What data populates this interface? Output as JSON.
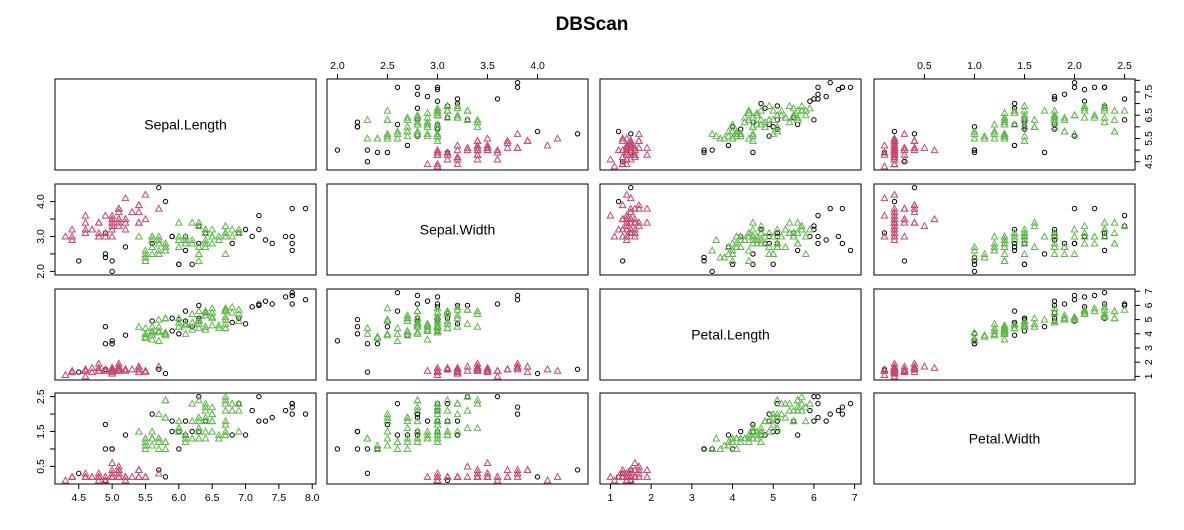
{
  "title": "DBScan",
  "chart_data": {
    "type": "scatter",
    "title": "DBScan",
    "variables": [
      "Sepal.Length",
      "Sepal.Width",
      "Petal.Length",
      "Petal.Width"
    ],
    "ranges": [
      [
        4.3,
        7.9
      ],
      [
        2.0,
        4.4
      ],
      [
        1.0,
        6.9
      ],
      [
        0.1,
        2.5
      ]
    ],
    "ticks": [
      [
        4.5,
        5.0,
        5.5,
        6.0,
        6.5,
        7.0,
        7.5,
        8.0
      ],
      [
        2.0,
        2.5,
        3.0,
        3.5,
        4.0
      ],
      [
        1,
        2,
        3,
        4,
        5,
        6,
        7
      ],
      [
        0.5,
        1.0,
        1.5,
        2.0,
        2.5
      ]
    ],
    "tick_labels": [
      [
        "4.5",
        "5.0",
        "5.5",
        "6.0",
        "6.5",
        "7.0",
        "7.5",
        "8.0"
      ],
      [
        "2.0",
        "2.5",
        "3.0",
        "3.5",
        "4.0"
      ],
      [
        "1",
        "2",
        "3",
        "4",
        "5",
        "6",
        "7"
      ],
      [
        "0.5",
        "1.0",
        "1.5",
        "2.0",
        "2.5"
      ]
    ],
    "left_ticks": {
      "1": {
        "values": [
          2.0,
          2.5,
          3.0,
          3.5,
          4.0
        ],
        "labels": [
          "2.0",
          "",
          "3.0",
          "",
          "4.0"
        ]
      },
      "3": {
        "values": [
          0.5,
          1.0,
          1.5,
          2.0,
          2.5
        ],
        "labels": [
          "0.5",
          "",
          "1.5",
          "",
          "2.5"
        ]
      }
    },
    "right_ticks": {
      "0": {
        "values": [
          4.5,
          5.0,
          5.5,
          6.0,
          6.5,
          7.0,
          7.5,
          8.0
        ],
        "labels": [
          "4.5",
          "",
          "5.5",
          "",
          "6.5",
          "",
          "7.5",
          ""
        ]
      },
      "2": {
        "values": [
          1,
          2,
          3,
          4,
          5,
          6,
          7
        ],
        "labels": [
          "1",
          "2",
          "3",
          "4",
          "5",
          "6",
          "7"
        ]
      }
    },
    "clusters": [
      {
        "cluster": 0,
        "color": "#000000",
        "marker": "circle",
        "points": [
          [
            5.8,
            4.0,
            1.2,
            0.2
          ],
          [
            5.7,
            4.4,
            1.5,
            0.4
          ],
          [
            4.5,
            2.3,
            1.3,
            0.3
          ],
          [
            5.0,
            2.3,
            3.3,
            1.0
          ],
          [
            4.9,
            2.4,
            3.3,
            1.0
          ],
          [
            5.2,
            2.7,
            3.9,
            1.4
          ],
          [
            5.0,
            2.0,
            3.5,
            1.0
          ],
          [
            5.9,
            3.0,
            4.2,
            1.5
          ],
          [
            6.0,
            2.2,
            4.0,
            1.0
          ],
          [
            6.2,
            2.2,
            4.5,
            1.5
          ],
          [
            6.3,
            3.3,
            6.0,
            2.5
          ],
          [
            7.1,
            3.0,
            5.9,
            2.1
          ],
          [
            7.6,
            3.0,
            6.6,
            2.1
          ],
          [
            4.9,
            2.5,
            4.5,
            1.7
          ],
          [
            7.3,
            2.9,
            6.3,
            1.8
          ],
          [
            7.2,
            3.6,
            6.1,
            2.5
          ],
          [
            7.7,
            3.8,
            6.7,
            2.2
          ],
          [
            7.7,
            2.6,
            6.9,
            2.3
          ],
          [
            6.0,
            2.2,
            5.0,
            1.5
          ],
          [
            7.7,
            2.8,
            6.7,
            2.0
          ],
          [
            7.2,
            3.2,
            6.0,
            1.8
          ],
          [
            7.9,
            3.8,
            6.4,
            2.0
          ],
          [
            6.3,
            2.8,
            5.1,
            1.5
          ],
          [
            6.1,
            2.6,
            5.6,
            1.4
          ],
          [
            7.7,
            3.0,
            6.1,
            2.3
          ],
          [
            6.4,
            3.1,
            5.5,
            1.8
          ],
          [
            6.9,
            3.1,
            5.1,
            2.3
          ],
          [
            5.9,
            3.0,
            5.1,
            1.8
          ],
          [
            6.8,
            2.8,
            4.8,
            1.4
          ],
          [
            5.6,
            2.8,
            4.9,
            2.0
          ],
          [
            7.4,
            2.8,
            6.1,
            1.9
          ],
          [
            6.1,
            3.0,
            4.9,
            1.8
          ],
          [
            4.9,
            3.1,
            1.5,
            0.1
          ],
          [
            7.0,
            3.2,
            4.7,
            1.4
          ]
        ]
      },
      {
        "cluster": 1,
        "color": "#c7476f",
        "marker": "triangle",
        "points": [
          [
            5.1,
            3.5,
            1.4,
            0.2
          ],
          [
            4.9,
            3.0,
            1.4,
            0.2
          ],
          [
            4.7,
            3.2,
            1.3,
            0.2
          ],
          [
            4.6,
            3.1,
            1.5,
            0.2
          ],
          [
            5.0,
            3.6,
            1.4,
            0.2
          ],
          [
            5.4,
            3.9,
            1.7,
            0.4
          ],
          [
            4.6,
            3.4,
            1.4,
            0.3
          ],
          [
            5.0,
            3.4,
            1.5,
            0.2
          ],
          [
            4.4,
            2.9,
            1.4,
            0.2
          ],
          [
            5.4,
            3.7,
            1.5,
            0.2
          ],
          [
            4.8,
            3.4,
            1.6,
            0.2
          ],
          [
            4.8,
            3.0,
            1.4,
            0.1
          ],
          [
            4.3,
            3.0,
            1.1,
            0.1
          ],
          [
            5.4,
            3.9,
            1.3,
            0.4
          ],
          [
            5.1,
            3.5,
            1.4,
            0.3
          ],
          [
            5.1,
            3.8,
            1.5,
            0.3
          ],
          [
            5.4,
            3.4,
            1.7,
            0.2
          ],
          [
            5.1,
            3.7,
            1.5,
            0.4
          ],
          [
            4.6,
            3.6,
            1.0,
            0.2
          ],
          [
            5.1,
            3.3,
            1.7,
            0.5
          ],
          [
            4.8,
            3.4,
            1.9,
            0.2
          ],
          [
            5.0,
            3.0,
            1.6,
            0.2
          ],
          [
            5.0,
            3.4,
            1.6,
            0.4
          ],
          [
            5.2,
            3.5,
            1.5,
            0.2
          ],
          [
            5.2,
            3.4,
            1.4,
            0.2
          ],
          [
            4.7,
            3.2,
            1.6,
            0.2
          ],
          [
            4.8,
            3.1,
            1.6,
            0.2
          ],
          [
            5.4,
            3.4,
            1.5,
            0.4
          ],
          [
            5.2,
            4.1,
            1.5,
            0.1
          ],
          [
            5.5,
            4.2,
            1.4,
            0.2
          ],
          [
            5.0,
            3.2,
            1.2,
            0.2
          ],
          [
            5.5,
            3.5,
            1.3,
            0.2
          ],
          [
            4.4,
            3.0,
            1.3,
            0.2
          ],
          [
            5.1,
            3.4,
            1.5,
            0.2
          ],
          [
            5.0,
            3.5,
            1.3,
            0.3
          ],
          [
            4.4,
            3.2,
            1.3,
            0.2
          ],
          [
            5.0,
            3.5,
            1.6,
            0.6
          ],
          [
            5.1,
            3.8,
            1.9,
            0.4
          ],
          [
            4.8,
            3.0,
            1.4,
            0.3
          ],
          [
            5.1,
            3.8,
            1.6,
            0.2
          ],
          [
            4.6,
            3.2,
            1.4,
            0.2
          ],
          [
            5.3,
            3.7,
            1.5,
            0.2
          ],
          [
            5.0,
            3.3,
            1.4,
            0.2
          ],
          [
            4.9,
            3.6,
            1.4,
            0.1
          ],
          [
            5.2,
            3.2,
            1.5,
            0.2
          ],
          [
            4.9,
            3.1,
            1.5,
            0.2
          ],
          [
            5.7,
            3.8,
            1.7,
            0.3
          ]
        ]
      },
      {
        "cluster": 2,
        "color": "#5fb84a",
        "marker": "triangle",
        "points": [
          [
            6.4,
            3.2,
            4.5,
            1.5
          ],
          [
            6.9,
            3.1,
            4.9,
            1.5
          ],
          [
            5.5,
            2.3,
            4.0,
            1.3
          ],
          [
            6.5,
            2.8,
            4.6,
            1.5
          ],
          [
            5.7,
            2.8,
            4.5,
            1.3
          ],
          [
            6.3,
            3.3,
            4.7,
            1.6
          ],
          [
            6.6,
            2.9,
            4.6,
            1.3
          ],
          [
            5.6,
            2.9,
            3.6,
            1.3
          ],
          [
            6.7,
            3.1,
            4.4,
            1.4
          ],
          [
            5.6,
            3.0,
            4.5,
            1.5
          ],
          [
            5.8,
            2.7,
            4.1,
            1.0
          ],
          [
            5.6,
            2.5,
            3.9,
            1.1
          ],
          [
            6.1,
            2.8,
            4.0,
            1.3
          ],
          [
            6.3,
            2.5,
            4.9,
            1.5
          ],
          [
            6.1,
            2.8,
            4.7,
            1.2
          ],
          [
            6.4,
            2.9,
            4.3,
            1.3
          ],
          [
            6.6,
            3.0,
            4.4,
            1.4
          ],
          [
            6.7,
            3.0,
            5.0,
            1.7
          ],
          [
            5.7,
            2.6,
            3.5,
            1.0
          ],
          [
            5.5,
            2.4,
            3.8,
            1.1
          ],
          [
            5.5,
            2.4,
            3.7,
            1.0
          ],
          [
            5.8,
            2.7,
            3.9,
            1.2
          ],
          [
            6.0,
            2.7,
            5.1,
            1.6
          ],
          [
            5.4,
            3.0,
            4.5,
            1.5
          ],
          [
            6.0,
            3.4,
            4.5,
            1.6
          ],
          [
            6.7,
            3.1,
            4.7,
            1.5
          ],
          [
            6.3,
            2.3,
            4.4,
            1.3
          ],
          [
            5.6,
            3.0,
            4.1,
            1.3
          ],
          [
            5.5,
            2.5,
            4.0,
            1.3
          ],
          [
            5.5,
            2.6,
            4.4,
            1.2
          ],
          [
            6.1,
            3.0,
            4.6,
            1.4
          ],
          [
            5.8,
            2.6,
            4.0,
            1.2
          ],
          [
            5.6,
            2.7,
            4.2,
            1.3
          ],
          [
            5.7,
            3.0,
            4.2,
            1.2
          ],
          [
            5.7,
            2.9,
            4.2,
            1.3
          ],
          [
            6.2,
            2.9,
            4.3,
            1.3
          ],
          [
            5.7,
            2.8,
            4.1,
            1.3
          ],
          [
            6.5,
            3.0,
            5.8,
            2.2
          ],
          [
            6.4,
            2.7,
            5.3,
            1.9
          ],
          [
            6.8,
            3.0,
            5.5,
            2.1
          ],
          [
            5.8,
            2.8,
            5.1,
            2.4
          ],
          [
            6.4,
            3.2,
            5.3,
            2.3
          ],
          [
            6.5,
            3.0,
            5.5,
            1.8
          ],
          [
            6.9,
            3.2,
            5.7,
            2.3
          ],
          [
            6.7,
            3.3,
            5.7,
            2.1
          ],
          [
            6.2,
            2.8,
            4.8,
            1.8
          ],
          [
            6.4,
            2.8,
            5.6,
            2.1
          ],
          [
            6.4,
            2.8,
            5.6,
            2.2
          ],
          [
            6.3,
            3.4,
            5.6,
            2.4
          ],
          [
            6.0,
            3.0,
            4.8,
            1.8
          ],
          [
            6.9,
            3.1,
            5.4,
            2.1
          ],
          [
            6.7,
            3.1,
            5.6,
            2.4
          ],
          [
            5.8,
            2.7,
            5.1,
            1.9
          ],
          [
            6.8,
            3.2,
            5.9,
            2.3
          ],
          [
            6.7,
            3.3,
            5.7,
            2.5
          ],
          [
            6.7,
            3.0,
            5.2,
            2.3
          ],
          [
            6.3,
            2.5,
            5.0,
            1.9
          ],
          [
            6.5,
            3.0,
            5.2,
            2.0
          ],
          [
            6.2,
            3.4,
            5.4,
            2.3
          ],
          [
            5.8,
            2.7,
            5.1,
            1.9
          ],
          [
            6.5,
            3.2,
            5.1,
            2.0
          ],
          [
            5.7,
            2.5,
            5.0,
            2.0
          ],
          [
            5.8,
            2.8,
            5.1,
            2.4
          ],
          [
            6.0,
            2.9,
            4.5,
            1.5
          ],
          [
            5.6,
            3.0,
            4.1,
            1.3
          ],
          [
            6.4,
            3.1,
            5.5,
            1.8
          ],
          [
            6.3,
            2.7,
            4.9,
            1.8
          ],
          [
            6.7,
            2.5,
            5.8,
            1.8
          ],
          [
            6.5,
            3.0,
            5.5,
            1.8
          ],
          [
            6.1,
            2.9,
            4.7,
            1.4
          ],
          [
            6.7,
            3.1,
            4.4,
            1.4
          ]
        ]
      }
    ]
  }
}
